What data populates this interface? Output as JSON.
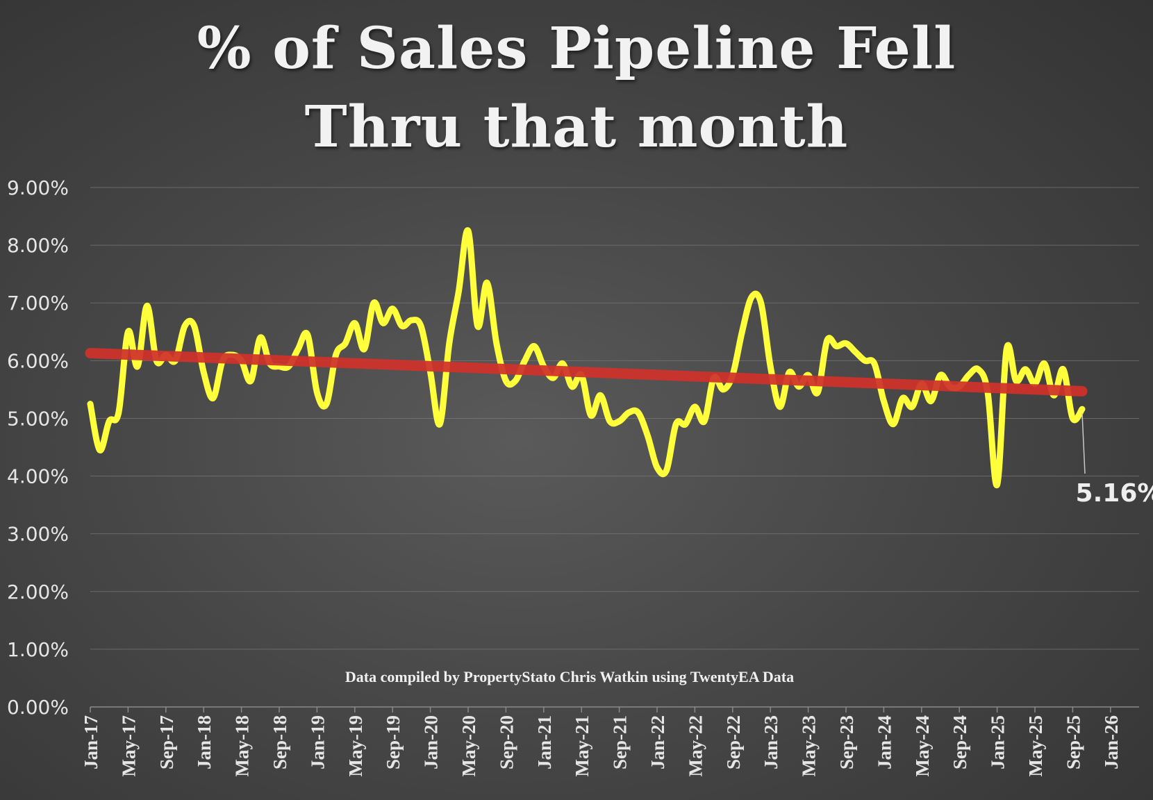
{
  "chart_data": {
    "type": "line",
    "title_lines": [
      "% of Sales Pipeline Fell",
      "Thru that month"
    ],
    "credit": "Data compiled by PropertyStato Chris Watkin using TwentyEA Data",
    "y_ticks": [
      "0.00%",
      "1.00%",
      "2.00%",
      "3.00%",
      "4.00%",
      "5.00%",
      "6.00%",
      "7.00%",
      "8.00%",
      "9.00%"
    ],
    "ylim": [
      0,
      9
    ],
    "x_ticks": [
      "Jan-17",
      "May-17",
      "Sep-17",
      "Jan-18",
      "May-18",
      "Sep-18",
      "Jan-19",
      "May-19",
      "Sep-19",
      "Jan-20",
      "May-20",
      "Sep-20",
      "Jan-21",
      "May-21",
      "Sep-21",
      "Jan-22",
      "May-22",
      "Sep-22",
      "Jan-23",
      "May-23",
      "Sep-23",
      "Jan-24",
      "May-24",
      "Sep-24",
      "Jan-25",
      "May-25",
      "Sep-25",
      "Jan-26"
    ],
    "x_start": "Jan-17",
    "grid": true,
    "colors": {
      "series": "#ffff3c",
      "trend": "#d0322b"
    },
    "last_value_label": "5.16%",
    "series": [
      {
        "type": "line",
        "values": [
          5.25,
          4.45,
          4.95,
          5.1,
          6.5,
          5.9,
          6.95,
          6.0,
          6.1,
          6.0,
          6.6,
          6.6,
          5.8,
          5.35,
          6.0,
          6.1,
          6.0,
          5.65,
          6.4,
          5.95,
          5.9,
          5.9,
          6.2,
          6.45,
          5.45,
          5.25,
          6.1,
          6.3,
          6.65,
          6.2,
          7.0,
          6.65,
          6.9,
          6.6,
          6.7,
          6.6,
          5.8,
          4.9,
          6.3,
          7.2,
          8.25,
          6.6,
          7.35,
          6.3,
          5.65,
          5.65,
          6.0,
          6.25,
          5.9,
          5.7,
          5.95,
          5.55,
          5.75,
          5.05,
          5.4,
          4.95,
          4.95,
          5.1,
          5.1,
          4.7,
          4.15,
          4.1,
          4.9,
          4.9,
          5.2,
          4.95,
          5.7,
          5.5,
          5.75,
          6.5,
          7.1,
          7.0,
          5.9,
          5.2,
          5.8,
          5.55,
          5.75,
          5.45,
          6.35,
          6.25,
          6.3,
          6.15,
          6.0,
          5.95,
          5.3,
          4.9,
          5.35,
          5.2,
          5.6,
          5.3,
          5.75,
          5.55,
          5.55,
          5.75,
          5.85,
          5.45,
          3.85,
          6.2,
          5.65,
          5.85,
          5.6,
          5.95,
          5.4,
          5.85,
          5.0,
          5.16
        ]
      },
      {
        "type": "trend",
        "values_start_end": [
          6.13,
          5.47
        ]
      }
    ]
  }
}
